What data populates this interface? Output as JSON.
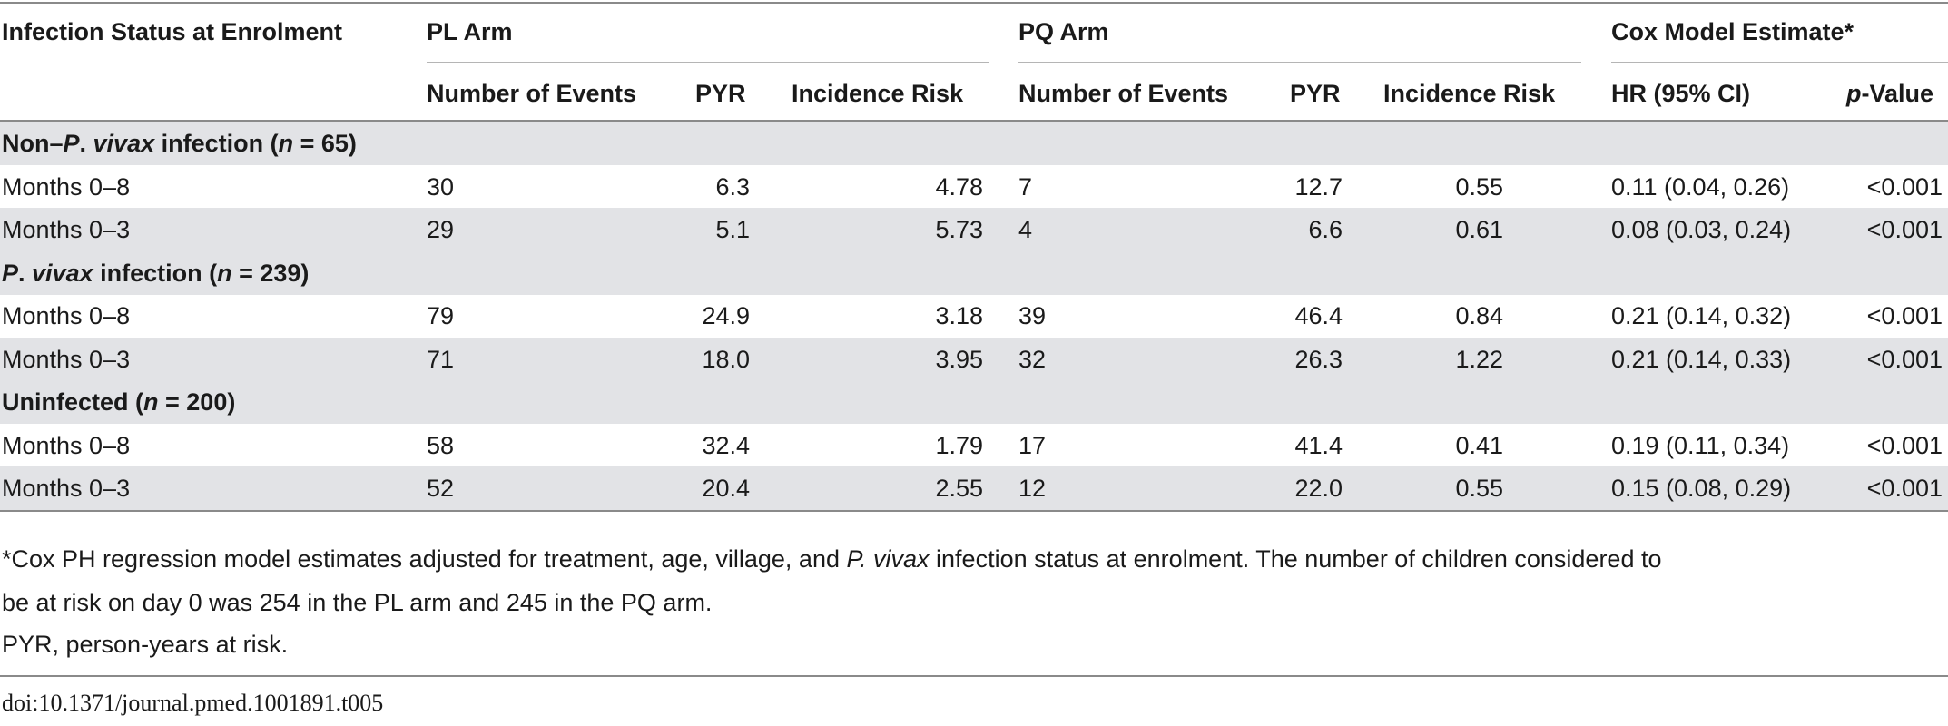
{
  "header": {
    "infection_status": "Infection Status at Enrolment",
    "pl_arm": "PL Arm",
    "pq_arm": "PQ Arm",
    "cox": "Cox Model Estimate*",
    "sub": {
      "pl_events": "Number of Events",
      "pl_pyr": "PYR",
      "pl_risk": "Incidence Risk",
      "pq_events": "Number of Events",
      "pq_pyr": "PYR",
      "pq_risk": "Incidence Risk",
      "hr": "HR (95% CI)",
      "p_italic": "p",
      "p_rest": "-Value"
    }
  },
  "sections": [
    {
      "title_parts": [
        "Non–",
        "P",
        ". ",
        "vivax",
        " infection (",
        "n",
        " = 65)"
      ],
      "rows": [
        {
          "label": "Months 0–8",
          "pl_events": "30",
          "pl_pyr": "6.3",
          "pl_risk": "4.78",
          "pq_events": "7",
          "pq_pyr": "12.7",
          "pq_risk": "0.55",
          "hr": "0.11 (0.04, 0.26)",
          "p": "<0.001"
        },
        {
          "label": "Months 0–3",
          "pl_events": "29",
          "pl_pyr": "5.1",
          "pl_risk": "5.73",
          "pq_events": "4",
          "pq_pyr": "6.6",
          "pq_risk": "0.61",
          "hr": "0.08 (0.03, 0.24)",
          "p": "<0.001"
        }
      ]
    },
    {
      "title_parts": [
        "",
        "P",
        ". ",
        "vivax",
        " infection (",
        "n",
        " = 239)"
      ],
      "rows": [
        {
          "label": "Months 0–8",
          "pl_events": "79",
          "pl_pyr": "24.9",
          "pl_risk": "3.18",
          "pq_events": "39",
          "pq_pyr": "46.4",
          "pq_risk": "0.84",
          "hr": "0.21 (0.14, 0.32)",
          "p": "<0.001"
        },
        {
          "label": "Months 0–3",
          "pl_events": "71",
          "pl_pyr": "18.0",
          "pl_risk": "3.95",
          "pq_events": "32",
          "pq_pyr": "26.3",
          "pq_risk": "1.22",
          "hr": "0.21 (0.14, 0.33)",
          "p": "<0.001"
        }
      ]
    },
    {
      "title_parts": [
        "Uninfected (",
        "n",
        " = 200)"
      ],
      "rows": [
        {
          "label": "Months 0–8",
          "pl_events": "58",
          "pl_pyr": "32.4",
          "pl_risk": "1.79",
          "pq_events": "17",
          "pq_pyr": "41.4",
          "pq_risk": "0.41",
          "hr": "0.19 (0.11, 0.34)",
          "p": "<0.001"
        },
        {
          "label": "Months 0–3",
          "pl_events": "52",
          "pl_pyr": "20.4",
          "pl_risk": "2.55",
          "pq_events": "12",
          "pq_pyr": "22.0",
          "pq_risk": "0.55",
          "hr": "0.15 (0.08, 0.29)",
          "p": "<0.001"
        }
      ]
    }
  ],
  "footnote": {
    "line1_a": "*Cox PH regression model estimates adjusted for treatment, age, village, and ",
    "line1_italic": "P. vivax",
    "line1_b": " infection status at enrolment. The number of children considered to",
    "line2": "be at risk on day 0 was 254 in the PL arm and 245 in the PQ arm.",
    "line3": "PYR, person-years at risk."
  },
  "doi": "doi:10.1371/journal.pmed.1001891.t005",
  "colors": {
    "shade": "#e2e3e6",
    "rule": "#8a8a8a"
  }
}
